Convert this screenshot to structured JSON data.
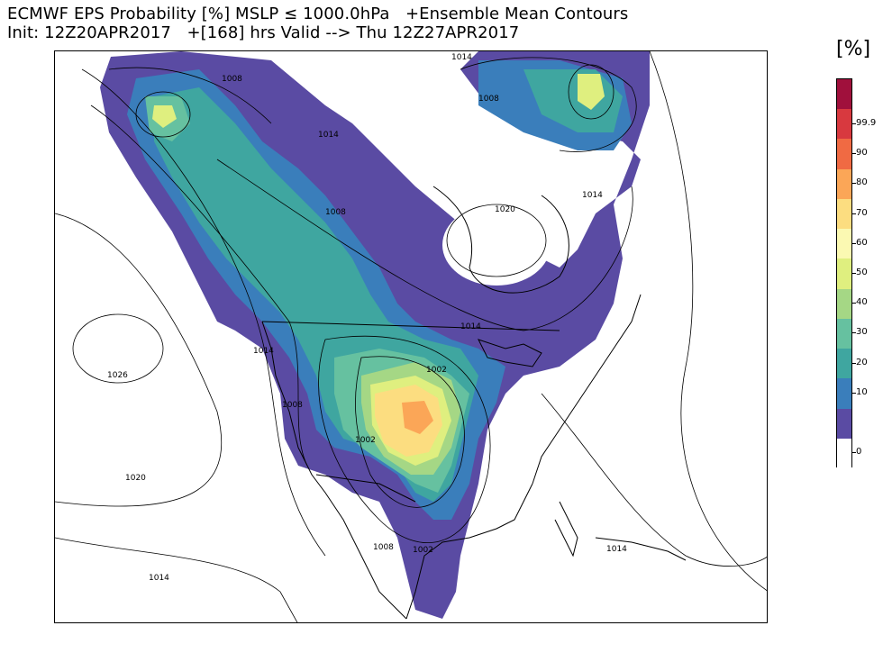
{
  "title_line1": "ECMWF EPS Probability [%] MSLP ≤ 1000.0hPa   +Ensemble Mean Contours",
  "title_line2": "Init: 12Z20APR2017   +[168] hrs Valid --> Thu 12Z27APR2017",
  "colorbar": {
    "title": "[%]",
    "levels": [
      {
        "label": "0",
        "color": "#ffffff"
      },
      {
        "label": "",
        "color": "#5a4ba3"
      },
      {
        "label": "10",
        "color": "#3a7ebb"
      },
      {
        "label": "20",
        "color": "#3fa6a0"
      },
      {
        "label": "30",
        "color": "#66c1a0"
      },
      {
        "label": "40",
        "color": "#a5d785"
      },
      {
        "label": "50",
        "color": "#dfef7f"
      },
      {
        "label": "60",
        "color": "#fbf9b2"
      },
      {
        "label": "70",
        "color": "#fcdd80"
      },
      {
        "label": "80",
        "color": "#fba657"
      },
      {
        "label": "90",
        "color": "#f06a43"
      },
      {
        "label": "99.9",
        "color": "#d8393f"
      },
      {
        "label": "",
        "color": "#a0103c"
      }
    ]
  },
  "contour_labels": [
    "1008",
    "1014",
    "1014",
    "1008",
    "1008",
    "1014",
    "1020",
    "1014",
    "1002",
    "1026",
    "1014",
    "1008",
    "1002",
    "1020",
    "1008",
    "1002",
    "1014",
    "1014"
  ]
}
